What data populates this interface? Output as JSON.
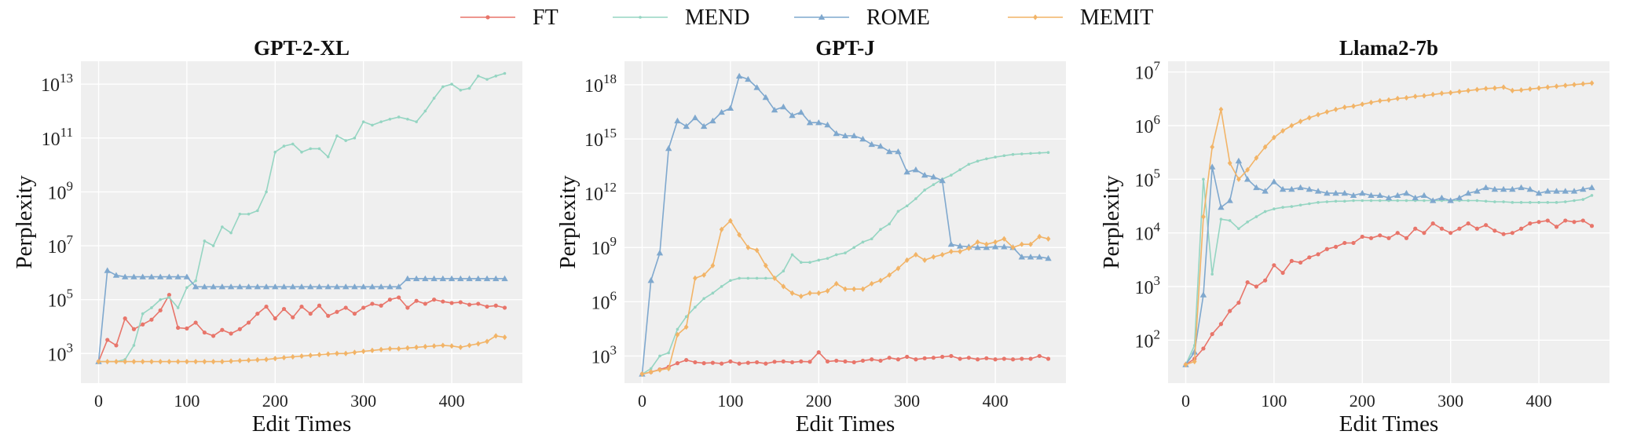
{
  "legend": [
    {
      "label": "FT",
      "color": "#E8756A",
      "marker": "circle"
    },
    {
      "label": "MEND",
      "color": "#95D5C2",
      "marker": "dot"
    },
    {
      "label": "ROME",
      "color": "#7FA8CE",
      "marker": "triangle"
    },
    {
      "label": "MEMIT",
      "color": "#F2B467",
      "marker": "diamond"
    }
  ],
  "chart_data": [
    {
      "type": "line",
      "title": "GPT-2-XL",
      "xlabel": "Edit Times",
      "ylabel": "Perplexity",
      "yscale": "log",
      "xlim": [
        -20,
        480
      ],
      "ylim_exp": [
        1.9,
        13.85
      ],
      "x_ticks": [
        0,
        100,
        200,
        300,
        400
      ],
      "y_tick_exponents": [
        3,
        5,
        7,
        9,
        11,
        13
      ],
      "y_tick_labels": [
        "10^3",
        "10^5",
        "10^7",
        "10^9",
        "10^11",
        "10^13"
      ],
      "grid": true,
      "x": [
        0,
        10,
        20,
        30,
        40,
        50,
        60,
        70,
        80,
        90,
        100,
        110,
        120,
        130,
        140,
        150,
        160,
        170,
        180,
        190,
        200,
        210,
        220,
        230,
        240,
        250,
        260,
        270,
        280,
        290,
        300,
        310,
        320,
        330,
        340,
        350,
        360,
        370,
        380,
        390,
        400,
        410,
        420,
        430,
        440,
        450,
        460
      ],
      "series": [
        {
          "name": "FT",
          "values": [
            500,
            3200,
            2000,
            20000,
            8000,
            12000,
            18000,
            40000,
            150000,
            9000,
            8500,
            14000,
            6000,
            4500,
            7500,
            5500,
            8000,
            14000,
            30000,
            55000,
            20000,
            45000,
            22000,
            55000,
            30000,
            60000,
            25000,
            35000,
            50000,
            30000,
            50000,
            70000,
            60000,
            100000,
            120000,
            50000,
            90000,
            70000,
            100000,
            85000,
            75000,
            80000,
            65000,
            70000,
            55000,
            60000,
            50000
          ]
        },
        {
          "name": "MEND",
          "values": [
            500,
            500,
            500,
            600,
            2000,
            30000,
            50000,
            100000,
            120000,
            50000,
            280000,
            500000,
            15000000,
            10000000,
            50000000,
            30000000,
            150000000,
            150000000,
            200000000,
            1000000000,
            30000000000,
            50000000000,
            60000000000,
            30000000000,
            40000000000,
            40000000000,
            20000000000,
            120000000000,
            80000000000,
            100000000000,
            400000000000,
            300000000000,
            400000000000,
            500000000000,
            600000000000,
            500000000000,
            400000000000,
            1000000000000,
            3000000000000,
            8000000000000,
            10000000000000,
            6000000000000,
            7000000000000,
            20000000000000,
            15000000000000,
            20000000000000,
            25000000000000
          ]
        },
        {
          "name": "ROME",
          "values": [
            500,
            1200000,
            800000,
            700000,
            700000,
            700000,
            700000,
            700000,
            700000,
            700000,
            700000,
            300000,
            300000,
            300000,
            300000,
            300000,
            300000,
            300000,
            300000,
            300000,
            300000,
            300000,
            300000,
            300000,
            300000,
            300000,
            300000,
            300000,
            300000,
            300000,
            300000,
            300000,
            300000,
            300000,
            300000,
            600000,
            600000,
            600000,
            600000,
            600000,
            600000,
            600000,
            600000,
            600000,
            600000,
            600000,
            600000
          ]
        },
        {
          "name": "MEMIT",
          "values": [
            500,
            500,
            500,
            500,
            500,
            500,
            500,
            500,
            500,
            500,
            500,
            500,
            500,
            500,
            500,
            520,
            540,
            560,
            580,
            600,
            650,
            700,
            750,
            800,
            850,
            900,
            950,
            1000,
            1000,
            1100,
            1200,
            1300,
            1400,
            1500,
            1500,
            1600,
            1700,
            1800,
            1900,
            2000,
            1900,
            1700,
            2000,
            2300,
            2800,
            4500,
            4000
          ]
        }
      ]
    },
    {
      "type": "line",
      "title": "GPT-J",
      "xlabel": "Edit Times",
      "ylabel": "Perplexity",
      "yscale": "log",
      "xlim": [
        -20,
        480
      ],
      "ylim_exp": [
        1.5,
        19.3
      ],
      "x_ticks": [
        0,
        100,
        200,
        300,
        400
      ],
      "y_tick_exponents": [
        3,
        6,
        9,
        12,
        15,
        18
      ],
      "y_tick_labels": [
        "10^3",
        "10^6",
        "10^9",
        "10^12",
        "10^15",
        "10^18"
      ],
      "grid": true,
      "x": [
        0,
        10,
        20,
        30,
        40,
        50,
        60,
        70,
        80,
        90,
        100,
        110,
        120,
        130,
        140,
        150,
        160,
        170,
        180,
        190,
        200,
        210,
        220,
        230,
        240,
        250,
        260,
        270,
        280,
        290,
        300,
        310,
        320,
        330,
        340,
        350,
        360,
        370,
        380,
        390,
        400,
        410,
        420,
        430,
        440,
        450,
        460
      ],
      "series": [
        {
          "name": "FT",
          "values": [
            100,
            130,
            180,
            250,
            400,
            600,
            450,
            400,
            420,
            380,
            500,
            380,
            420,
            450,
            380,
            480,
            500,
            450,
            500,
            480,
            1600,
            500,
            550,
            500,
            450,
            550,
            650,
            550,
            800,
            650,
            900,
            650,
            750,
            800,
            900,
            1000,
            700,
            800,
            650,
            750,
            650,
            700,
            650,
            700,
            700,
            1000,
            700
          ]
        },
        {
          "name": "MEND",
          "values": [
            100,
            200,
            1000,
            1500,
            30000,
            150000,
            500000,
            1500000,
            3000000,
            7000000,
            15000000,
            20000000,
            20000000,
            20000000,
            20000000,
            20000000,
            50000000,
            400000000,
            150000000,
            150000000,
            200000000,
            250000000,
            400000000,
            500000000,
            1000000000,
            2000000000,
            3000000000,
            10000000000,
            20000000000,
            100000000000,
            200000000000,
            500000000000,
            1500000000000,
            3000000000000,
            6000000000000,
            10000000000000,
            20000000000000,
            40000000000000,
            60000000000000,
            80000000000000,
            100000000000000,
            120000000000000,
            140000000000000,
            150000000000000,
            160000000000000,
            170000000000000,
            180000000000000
          ]
        },
        {
          "name": "ROME",
          "values": [
            100,
            15000000,
            500000000,
            300000000000000,
            10000000000000000,
            5000000000000000,
            15000000000000000,
            5000000000000000,
            10000000000000000,
            30000000000000000,
            50000000000000000,
            3000000000000000000,
            2000000000000000000,
            700000000000000000,
            200000000000000000,
            40000000000000000,
            60000000000000000,
            20000000000000000,
            30000000000000000,
            8000000000000000,
            8000000000000000,
            6000000000000000,
            2000000000000000,
            1500000000000000,
            1500000000000000,
            1000000000000000,
            500000000000000,
            400000000000000,
            200000000000000,
            200000000000000,
            15000000000000,
            20000000000000,
            10000000000000,
            8000000000000,
            5000000000000,
            1500000000,
            1200000000,
            1100000000,
            1000000000,
            1000000000,
            1100000000,
            1100000000,
            1000000000,
            300000000,
            300000000,
            300000000,
            250000000
          ]
        },
        {
          "name": "MEMIT",
          "values": [
            100,
            130,
            170,
            200,
            15000,
            40000,
            20000000,
            30000000,
            100000000,
            10000000000,
            30000000000,
            5000000000,
            1000000000,
            700000000,
            100000000,
            20000000,
            7000000,
            3000000,
            2000000,
            3000000,
            3000000,
            4000000,
            10000000,
            5000000,
            5000000,
            5000000,
            10000000,
            15000000,
            30000000,
            70000000,
            200000000,
            400000000,
            200000000,
            300000000,
            400000000,
            600000000,
            600000000,
            900000000,
            2000000000,
            1500000000,
            2000000000,
            3000000000,
            1000000000,
            1500000000,
            1500000000,
            4000000000,
            3000000000
          ]
        }
      ]
    },
    {
      "type": "line",
      "title": "Llama2-7b",
      "xlabel": "Edit Times",
      "ylabel": "Perplexity",
      "yscale": "log",
      "xlim": [
        -20,
        480
      ],
      "ylim_exp": [
        1.2,
        7.2
      ],
      "x_ticks": [
        0,
        100,
        200,
        300,
        400
      ],
      "y_tick_exponents": [
        2,
        3,
        4,
        5,
        6,
        7
      ],
      "y_tick_labels": [
        "10^2",
        "10^3",
        "10^4",
        "10^5",
        "10^6",
        "10^7"
      ],
      "grid": true,
      "x": [
        0,
        10,
        20,
        30,
        40,
        50,
        60,
        70,
        80,
        90,
        100,
        110,
        120,
        130,
        140,
        150,
        160,
        170,
        180,
        190,
        200,
        210,
        220,
        230,
        240,
        250,
        260,
        270,
        280,
        290,
        300,
        310,
        320,
        330,
        340,
        350,
        360,
        370,
        380,
        390,
        400,
        410,
        420,
        430,
        440,
        450,
        460
      ],
      "series": [
        {
          "name": "FT",
          "values": [
            35,
            45,
            70,
            130,
            200,
            350,
            500,
            1200,
            1000,
            1300,
            2500,
            1800,
            3000,
            2800,
            3500,
            4000,
            5000,
            5500,
            6500,
            6500,
            8500,
            8000,
            9000,
            8000,
            10000,
            8000,
            12000,
            10000,
            15000,
            12000,
            10000,
            12000,
            15000,
            12000,
            14000,
            11000,
            9500,
            10000,
            12000,
            15000,
            16000,
            17000,
            13000,
            17000,
            16000,
            17000,
            13500
          ]
        },
        {
          "name": "MEND",
          "values": [
            35,
            80,
            100000,
            1700,
            18000,
            17000,
            12000,
            16000,
            20000,
            25000,
            28000,
            30000,
            31000,
            33000,
            35000,
            37000,
            38000,
            39000,
            39000,
            40000,
            40000,
            40000,
            40000,
            40000,
            40000,
            40000,
            40000,
            40000,
            40000,
            40000,
            40000,
            40000,
            40000,
            40000,
            39000,
            38000,
            38000,
            37000,
            37000,
            37000,
            37000,
            37000,
            37000,
            38000,
            40000,
            42000,
            50000
          ]
        },
        {
          "name": "ROME",
          "values": [
            35,
            60,
            700,
            170000,
            30000,
            40000,
            220000,
            100000,
            70000,
            60000,
            90000,
            65000,
            65000,
            70000,
            65000,
            60000,
            55000,
            55000,
            55000,
            50000,
            55000,
            50000,
            50000,
            45000,
            50000,
            55000,
            45000,
            50000,
            40000,
            45000,
            40000,
            45000,
            55000,
            60000,
            70000,
            65000,
            65000,
            65000,
            70000,
            65000,
            55000,
            60000,
            60000,
            60000,
            60000,
            65000,
            70000
          ]
        },
        {
          "name": "MEMIT",
          "values": [
            35,
            40,
            20000,
            400000,
            2000000,
            200000,
            100000,
            150000,
            250000,
            400000,
            600000,
            800000,
            1000000,
            1200000,
            1400000,
            1600000,
            1800000,
            2000000,
            2200000,
            2300000,
            2500000,
            2700000,
            2900000,
            3000000,
            3200000,
            3300000,
            3500000,
            3600000,
            3800000,
            4000000,
            4100000,
            4300000,
            4500000,
            4700000,
            4900000,
            5000000,
            5200000,
            4500000,
            4600000,
            4800000,
            5000000,
            5200000,
            5400000,
            5600000,
            5800000,
            6000000,
            6200000
          ]
        }
      ]
    }
  ]
}
